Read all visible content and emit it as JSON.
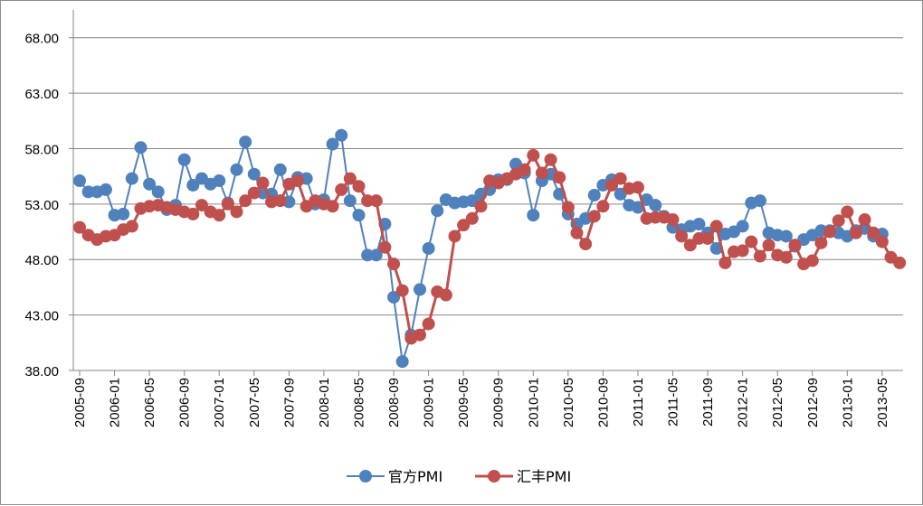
{
  "chart_data": {
    "type": "line",
    "title": "",
    "xlabel": "",
    "ylabel": "",
    "ylim": [
      38,
      70.5
    ],
    "yticks": [
      "38.00",
      "43.00",
      "48.00",
      "53.00",
      "58.00",
      "63.00",
      "68.00"
    ],
    "ytick_values": [
      38,
      43,
      48,
      53,
      58,
      63,
      68
    ],
    "grid": true,
    "legend_position": "bottom",
    "xtick_labels": [
      "2005-09",
      "2006-01",
      "2006-05",
      "2006-09",
      "2007-01",
      "2007-05",
      "2007-09",
      "2008-01",
      "2008-05",
      "2008-09",
      "2009-01",
      "2009-05",
      "2009-09",
      "2010-01",
      "2010-05",
      "2010-09",
      "2011-01",
      "2011-05",
      "2011-09",
      "2012-01",
      "2012-05",
      "2012-09",
      "2013-01",
      "2013-05"
    ],
    "x_start": "2005-09",
    "x_end": "2013-07",
    "series": [
      {
        "name": "官方PMI",
        "color": "#4f81bd",
        "values": [
          55.1,
          54.1,
          54.1,
          54.3,
          52.0,
          52.1,
          55.3,
          58.1,
          54.8,
          54.1,
          52.5,
          52.9,
          57.0,
          54.7,
          55.3,
          54.8,
          55.1,
          53.1,
          56.1,
          58.6,
          55.7,
          54.0,
          53.9,
          56.1,
          53.2,
          55.4,
          55.3,
          53.0,
          53.4,
          58.4,
          59.2,
          53.3,
          52.0,
          48.4,
          48.4,
          51.2,
          44.6,
          38.8,
          41.2,
          45.3,
          49.0,
          52.4,
          53.4,
          53.1,
          53.2,
          53.3,
          53.9,
          54.3,
          55.2,
          55.2,
          56.6,
          55.8,
          52.0,
          55.1,
          55.7,
          53.9,
          52.1,
          51.2,
          51.7,
          53.8,
          54.7,
          55.2,
          53.9,
          52.9,
          52.7,
          53.4,
          52.9,
          51.9,
          50.9,
          50.7,
          51.0,
          51.2,
          50.4,
          49.0,
          50.3,
          50.5,
          51.0,
          53.1,
          53.3,
          50.4,
          50.2,
          50.1,
          49.2,
          49.8,
          50.2,
          50.6,
          50.6,
          50.4,
          50.1,
          50.6,
          50.8,
          50.1,
          50.3
        ]
      },
      {
        "name": "汇丰PMI",
        "color": "#c0504d",
        "values": [
          50.9,
          50.2,
          49.8,
          50.1,
          50.2,
          50.7,
          51.0,
          52.6,
          52.8,
          52.9,
          52.7,
          52.5,
          52.3,
          52.1,
          52.9,
          52.3,
          52.0,
          53.0,
          52.3,
          53.3,
          54.0,
          54.9,
          53.2,
          53.3,
          54.8,
          55.1,
          52.8,
          53.3,
          53.0,
          52.8,
          54.3,
          55.3,
          54.6,
          53.3,
          53.3,
          49.1,
          47.6,
          45.2,
          40.9,
          41.2,
          42.2,
          45.1,
          44.8,
          50.1,
          51.1,
          51.7,
          52.8,
          55.1,
          54.9,
          55.3,
          55.7,
          56.1,
          57.4,
          55.8,
          57.0,
          55.4,
          52.7,
          50.4,
          49.4,
          51.9,
          52.8,
          54.7,
          55.3,
          54.4,
          54.5,
          51.7,
          51.8,
          51.8,
          51.6,
          50.1,
          49.3,
          49.9,
          49.9,
          51.0,
          47.7,
          48.7,
          48.8,
          49.6,
          48.3,
          49.3,
          48.4,
          48.2,
          49.3,
          47.6,
          47.9,
          49.5,
          50.5,
          51.5,
          52.3,
          50.4,
          51.6,
          50.4,
          49.6,
          48.2,
          47.7
        ]
      }
    ]
  }
}
